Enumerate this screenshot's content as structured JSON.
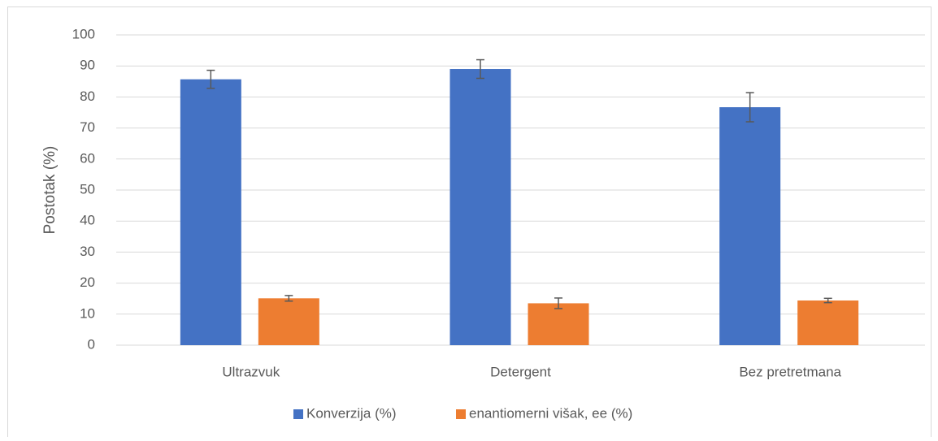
{
  "chart_data": {
    "type": "bar",
    "y_label": "Postotak (%)",
    "categories": [
      "Ultrazvuk",
      "Detergent",
      "Bez pretretmana"
    ],
    "series": [
      {
        "name": "Konverzija (%)",
        "color": "#4472c4",
        "values": [
          85.7,
          89,
          76.7
        ],
        "errors": [
          2.9,
          3,
          4.7
        ]
      },
      {
        "name": "enantiomerni višak, ee (%)",
        "color": "#ed7d31",
        "values": [
          15.1,
          13.5,
          14.4
        ],
        "errors": [
          0.9,
          1.7,
          0.7
        ]
      }
    ],
    "ylim": [
      0,
      100
    ],
    "yticks": [
      0,
      10,
      20,
      30,
      40,
      50,
      60,
      70,
      80,
      90,
      100
    ],
    "grid": true,
    "legend": "bottom"
  }
}
